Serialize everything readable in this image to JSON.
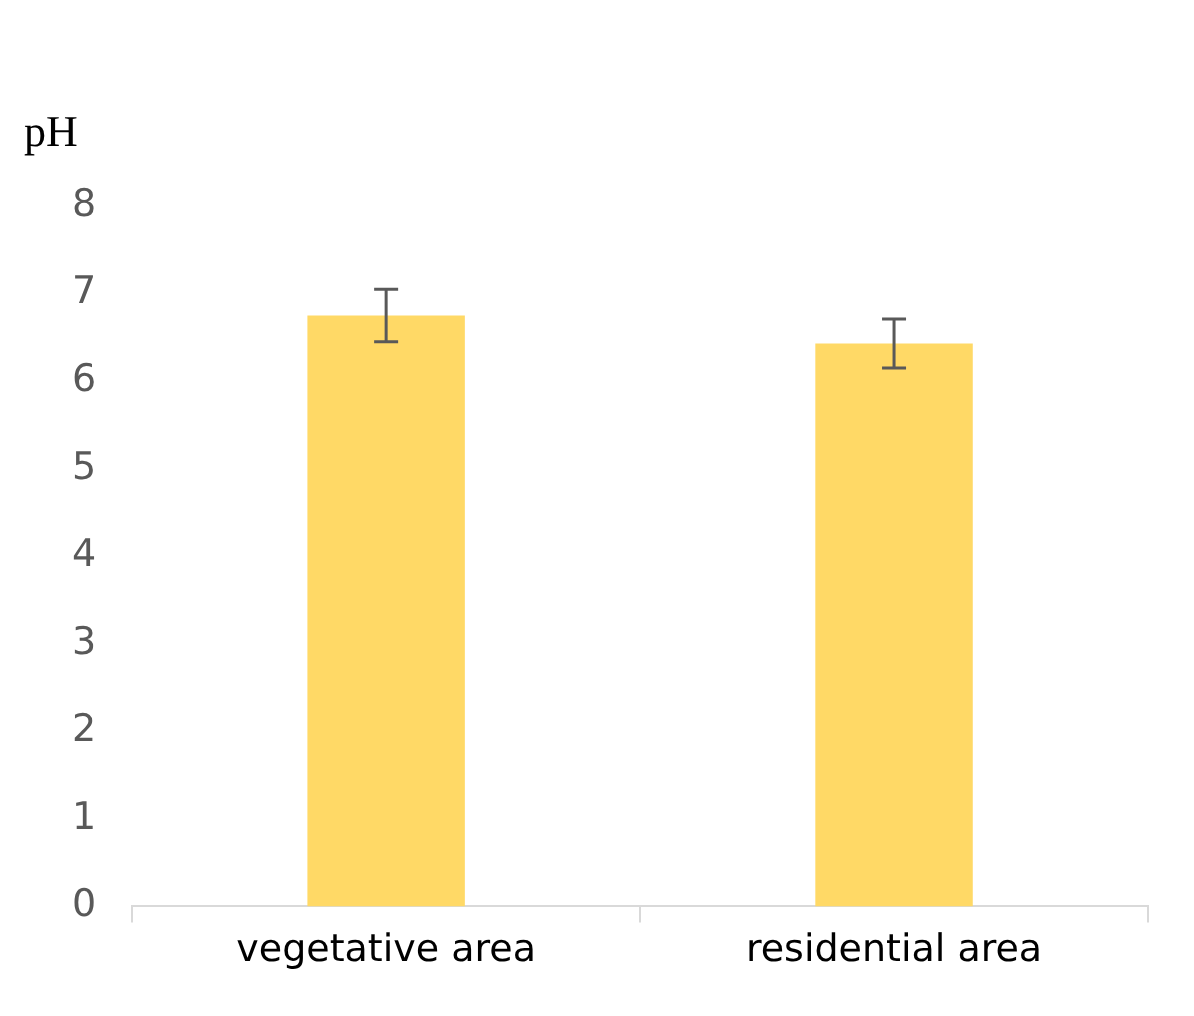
{
  "chart_data": {
    "type": "bar",
    "ylabel": "pH",
    "categories": [
      "vegetative area",
      "residential area"
    ],
    "values": [
      6.75,
      6.43
    ],
    "errors": [
      0.3,
      0.28
    ],
    "color": "#ffd966",
    "ylim": [
      0,
      8
    ],
    "yticks": [
      0,
      1,
      2,
      3,
      4,
      5,
      6,
      7,
      8
    ],
    "grid": false,
    "legend": false
  }
}
